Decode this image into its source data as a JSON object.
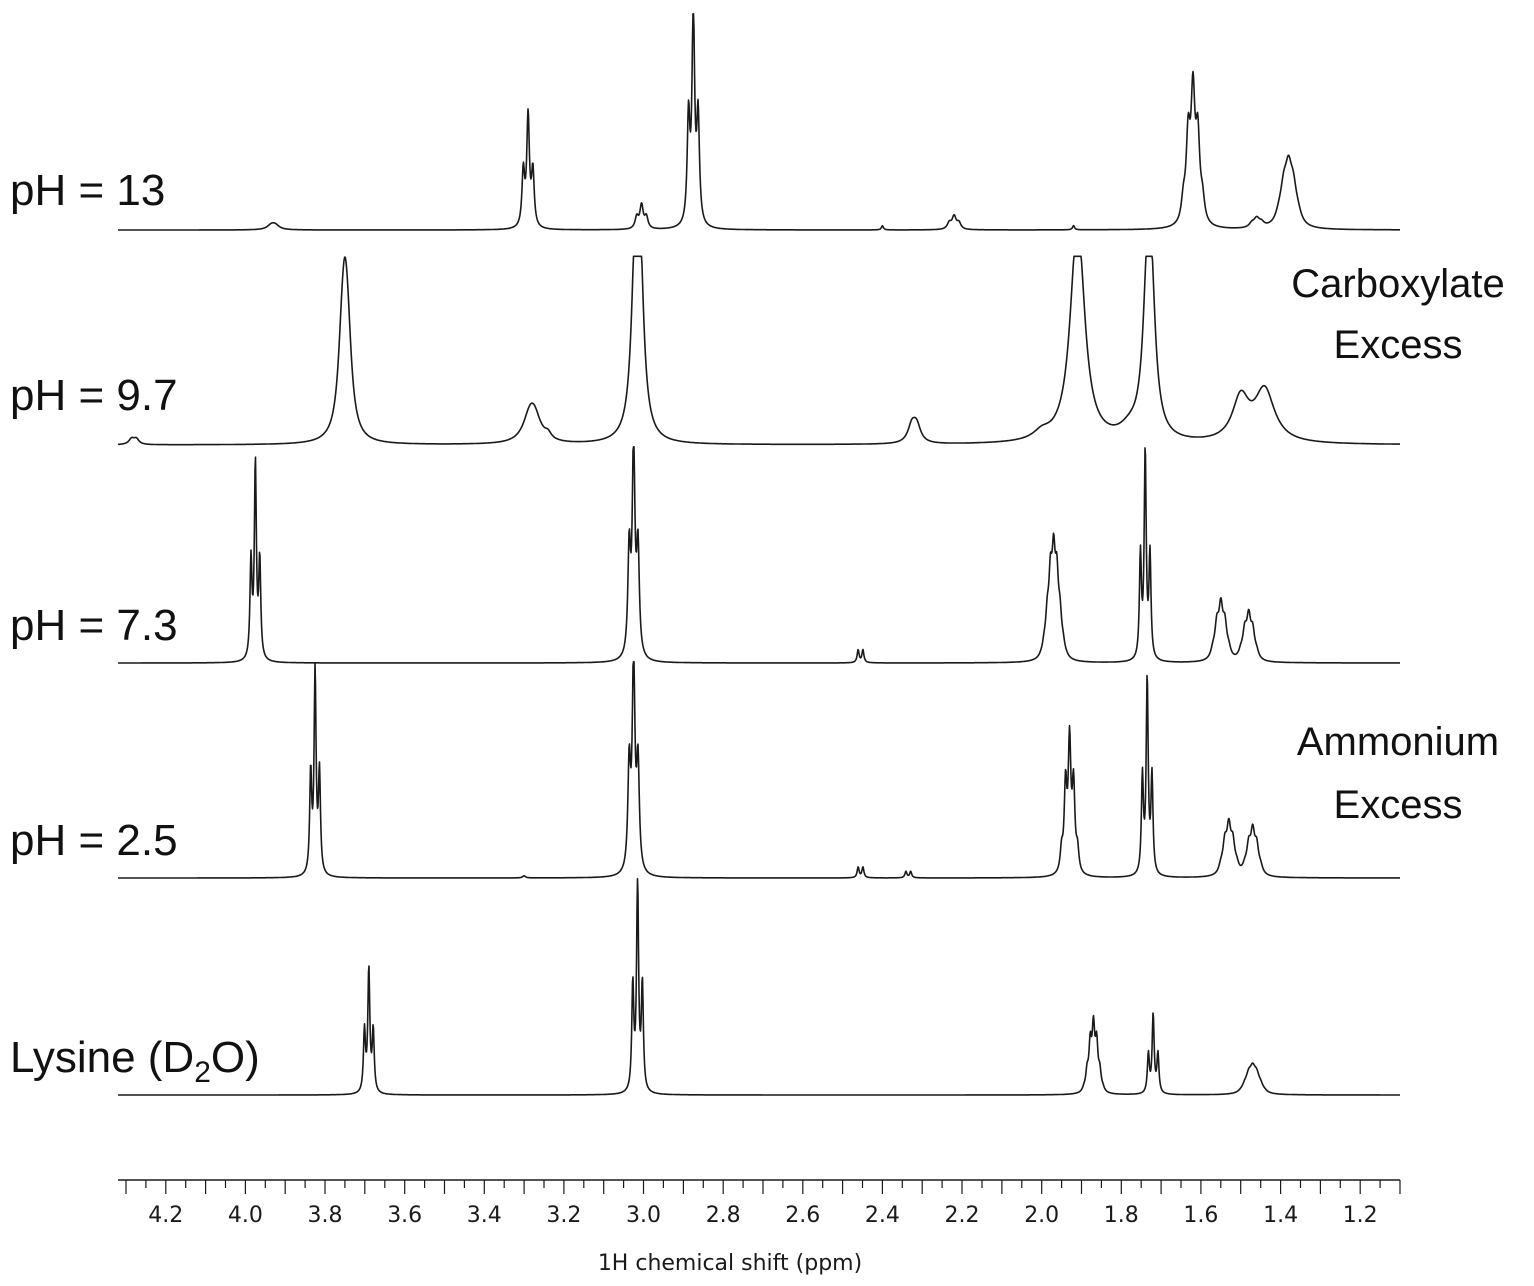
{
  "chart_data": {
    "type": "line",
    "xlabel": "1H chemical shift (ppm)",
    "x_reversed": true,
    "xlim": [
      4.32,
      1.1
    ],
    "x_ticks": [
      4.2,
      4.0,
      3.8,
      3.6,
      3.4,
      3.2,
      3.0,
      2.8,
      2.6,
      2.4,
      2.2,
      2.0,
      1.8,
      1.6,
      1.4,
      1.2
    ],
    "x_tick_labels": [
      "4.2",
      "4.0",
      "3.8",
      "3.6",
      "3.4",
      "3.2",
      "3.0",
      "2.8",
      "2.6",
      "2.4",
      "2.2",
      "2.0",
      "1.8",
      "1.6",
      "1.4",
      "1.2"
    ],
    "grid": false,
    "annotations": [
      {
        "name": "carboxylate",
        "lines": [
          "Carboxylate",
          "Excess"
        ]
      },
      {
        "name": "ammonium",
        "lines": [
          "Ammonium",
          "Excess"
        ]
      }
    ],
    "series": [
      {
        "name": "pH = 13",
        "peaks": [
          {
            "ppm": 3.93,
            "height": 0.02,
            "width": 0.012,
            "mult": 2,
            "j": 0.01
          },
          {
            "ppm": 3.29,
            "height": 0.52,
            "width": 0.004,
            "mult": 3,
            "j": 0.012
          },
          {
            "ppm": 3.005,
            "height": 0.11,
            "width": 0.005,
            "mult": 3,
            "j": 0.012
          },
          {
            "ppm": 2.875,
            "height": 1.0,
            "width": 0.004,
            "mult": 3,
            "j": 0.012
          },
          {
            "ppm": 2.4,
            "height": 0.02,
            "width": 0.003,
            "mult": 1,
            "j": 0.0
          },
          {
            "ppm": 2.22,
            "height": 0.06,
            "width": 0.006,
            "mult": 3,
            "j": 0.012
          },
          {
            "ppm": 1.92,
            "height": 0.02,
            "width": 0.003,
            "mult": 1,
            "j": 0.0
          },
          {
            "ppm": 1.62,
            "height": 0.58,
            "width": 0.006,
            "mult": 5,
            "j": 0.012
          },
          {
            "ppm": 1.46,
            "height": 0.04,
            "width": 0.008,
            "mult": 3,
            "j": 0.012
          },
          {
            "ppm": 1.38,
            "height": 0.22,
            "width": 0.01,
            "mult": 5,
            "j": 0.012
          }
        ]
      },
      {
        "name": "pH = 9.7",
        "peaks": [
          {
            "ppm": 4.28,
            "height": 0.03,
            "width": 0.008,
            "mult": 2,
            "j": 0.012
          },
          {
            "ppm": 3.75,
            "height": 0.6,
            "width": 0.012,
            "mult": 3,
            "j": 0.008
          },
          {
            "ppm": 3.28,
            "height": 0.12,
            "width": 0.02,
            "mult": 2,
            "j": 0.012
          },
          {
            "ppm": 3.24,
            "height": 0.03,
            "width": 0.01,
            "mult": 1,
            "j": 0.0
          },
          {
            "ppm": 3.015,
            "height": 0.9,
            "width": 0.011,
            "mult": 3,
            "j": 0.008
          },
          {
            "ppm": 2.32,
            "height": 0.09,
            "width": 0.012,
            "mult": 2,
            "j": 0.012
          },
          {
            "ppm": 2.0,
            "height": 0.04,
            "width": 0.025,
            "mult": 1,
            "j": 0.0
          },
          {
            "ppm": 1.91,
            "height": 0.62,
            "width": 0.02,
            "mult": 2,
            "j": 0.01
          },
          {
            "ppm": 1.78,
            "height": 0.05,
            "width": 0.03,
            "mult": 1,
            "j": 0.0
          },
          {
            "ppm": 1.73,
            "height": 0.68,
            "width": 0.013,
            "mult": 2,
            "j": 0.01
          },
          {
            "ppm": 1.5,
            "height": 0.23,
            "width": 0.025,
            "mult": 1,
            "j": 0.0
          },
          {
            "ppm": 1.44,
            "height": 0.28,
            "width": 0.03,
            "mult": 1,
            "j": 0.0
          }
        ]
      },
      {
        "name": "pH = 7.3",
        "peaks": [
          {
            "ppm": 3.975,
            "height": 0.92,
            "width": 0.003,
            "mult": 3,
            "j": 0.011
          },
          {
            "ppm": 3.025,
            "height": 1.0,
            "width": 0.004,
            "mult": 3,
            "j": 0.011
          },
          {
            "ppm": 2.455,
            "height": 0.06,
            "width": 0.003,
            "mult": 2,
            "j": 0.012
          },
          {
            "ppm": 1.97,
            "height": 0.4,
            "width": 0.005,
            "mult": 9,
            "j": 0.008
          },
          {
            "ppm": 1.74,
            "height": 0.98,
            "width": 0.003,
            "mult": 3,
            "j": 0.012
          },
          {
            "ppm": 1.55,
            "height": 0.22,
            "width": 0.006,
            "mult": 5,
            "j": 0.01
          },
          {
            "ppm": 1.48,
            "height": 0.18,
            "width": 0.006,
            "mult": 5,
            "j": 0.01
          }
        ]
      },
      {
        "name": "pH = 2.5",
        "peaks": [
          {
            "ppm": 3.825,
            "height": 0.95,
            "width": 0.003,
            "mult": 3,
            "j": 0.011
          },
          {
            "ppm": 3.025,
            "height": 1.0,
            "width": 0.004,
            "mult": 3,
            "j": 0.011
          },
          {
            "ppm": 3.3,
            "height": 0.01,
            "width": 0.004,
            "mult": 1,
            "j": 0.0
          },
          {
            "ppm": 2.455,
            "height": 0.05,
            "width": 0.003,
            "mult": 2,
            "j": 0.012
          },
          {
            "ppm": 2.335,
            "height": 0.03,
            "width": 0.003,
            "mult": 2,
            "j": 0.012
          },
          {
            "ppm": 1.93,
            "height": 0.6,
            "width": 0.004,
            "mult": 5,
            "j": 0.01
          },
          {
            "ppm": 1.735,
            "height": 0.92,
            "width": 0.003,
            "mult": 3,
            "j": 0.012
          },
          {
            "ppm": 1.53,
            "height": 0.2,
            "width": 0.006,
            "mult": 5,
            "j": 0.01
          },
          {
            "ppm": 1.47,
            "height": 0.18,
            "width": 0.006,
            "mult": 5,
            "j": 0.01
          }
        ]
      },
      {
        "name": "Lysine (D2O)",
        "peaks": [
          {
            "ppm": 3.69,
            "height": 0.58,
            "width": 0.003,
            "mult": 3,
            "j": 0.011
          },
          {
            "ppm": 3.015,
            "height": 1.0,
            "width": 0.003,
            "mult": 3,
            "j": 0.012
          },
          {
            "ppm": 1.87,
            "height": 0.28,
            "width": 0.004,
            "mult": 7,
            "j": 0.008
          },
          {
            "ppm": 1.72,
            "height": 0.37,
            "width": 0.003,
            "mult": 3,
            "j": 0.012
          },
          {
            "ppm": 1.47,
            "height": 0.09,
            "width": 0.008,
            "mult": 7,
            "j": 0.01
          }
        ]
      }
    ]
  }
}
